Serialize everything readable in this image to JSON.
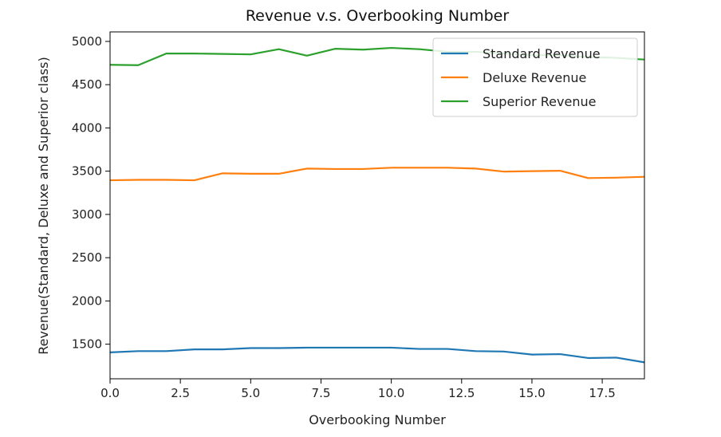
{
  "chart_data": {
    "type": "line",
    "title": "Revenue v.s. Overbooking Number",
    "xlabel": "Overbooking Number",
    "ylabel": "Revenue(Standard, Deluxe and Superior class)",
    "xlim": [
      0,
      19
    ],
    "ylim": [
      1100,
      5110
    ],
    "xticks": [
      0.0,
      2.5,
      5.0,
      7.5,
      10.0,
      12.5,
      15.0,
      17.5
    ],
    "xtick_labels": [
      "0.0",
      "2.5",
      "5.0",
      "7.5",
      "10.0",
      "12.5",
      "15.0",
      "17.5"
    ],
    "yticks": [
      1500,
      2000,
      2500,
      3000,
      3500,
      4000,
      4500,
      5000
    ],
    "ytick_labels": [
      "1500",
      "2000",
      "2500",
      "3000",
      "3500",
      "4000",
      "4500",
      "5000"
    ],
    "grid": false,
    "legend_position": "top-right",
    "x": [
      0,
      1,
      2,
      3,
      4,
      5,
      6,
      7,
      8,
      9,
      10,
      11,
      12,
      13,
      14,
      15,
      16,
      17,
      18,
      19
    ],
    "series": [
      {
        "name": "Standard Revenue",
        "color": "#1f77b4",
        "values": [
          1405,
          1420,
          1420,
          1440,
          1440,
          1455,
          1455,
          1460,
          1460,
          1460,
          1460,
          1445,
          1445,
          1420,
          1415,
          1380,
          1385,
          1340,
          1345,
          1290
        ]
      },
      {
        "name": "Deluxe Revenue",
        "color": "#ff7f0e",
        "values": [
          3395,
          3400,
          3400,
          3395,
          3475,
          3470,
          3470,
          3530,
          3525,
          3525,
          3540,
          3540,
          3540,
          3530,
          3495,
          3500,
          3505,
          3420,
          3425,
          3435
        ]
      },
      {
        "name": "Superior Revenue",
        "color": "#2ca02c",
        "values": [
          4730,
          4725,
          4860,
          4860,
          4855,
          4850,
          4910,
          4835,
          4915,
          4905,
          4925,
          4910,
          4880,
          4880,
          4860,
          4840,
          4840,
          4820,
          4810,
          4790
        ]
      }
    ]
  }
}
